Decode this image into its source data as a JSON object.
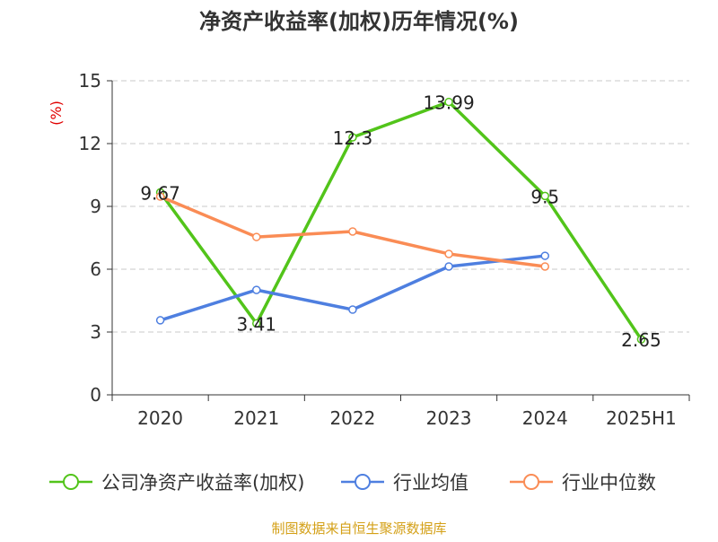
{
  "chart_data": {
    "type": "line",
    "title": "净资产收益率(加权)历年情况(%)",
    "ylabel": "(%)",
    "xlabel": "",
    "categories": [
      "2020",
      "2021",
      "2022",
      "2023",
      "2024",
      "2025H1"
    ],
    "ylim": [
      0,
      15
    ],
    "yticks": [
      0,
      3,
      6,
      9,
      12,
      15
    ],
    "grid": true,
    "legend_position": "bottom",
    "series": [
      {
        "name": "公司净资产收益率(加权)",
        "color": "#52c41a",
        "values": [
          9.67,
          3.41,
          12.3,
          13.99,
          9.5,
          2.65
        ],
        "labels": [
          "9.67",
          "3.41",
          "12.3",
          "13.99",
          "9.5",
          "2.65"
        ]
      },
      {
        "name": "行业均值",
        "color": "#4e7fe0",
        "values": [
          3.56,
          5.01,
          4.07,
          6.13,
          6.64,
          null
        ]
      },
      {
        "name": "行业中位数",
        "color": "#fa8c55",
        "values": [
          9.47,
          7.54,
          7.8,
          6.73,
          6.13,
          null
        ]
      }
    ],
    "source": "制图数据来自恒生聚源数据库",
    "source_color": "#d4a017",
    "ylabel_color": "#e00000"
  }
}
